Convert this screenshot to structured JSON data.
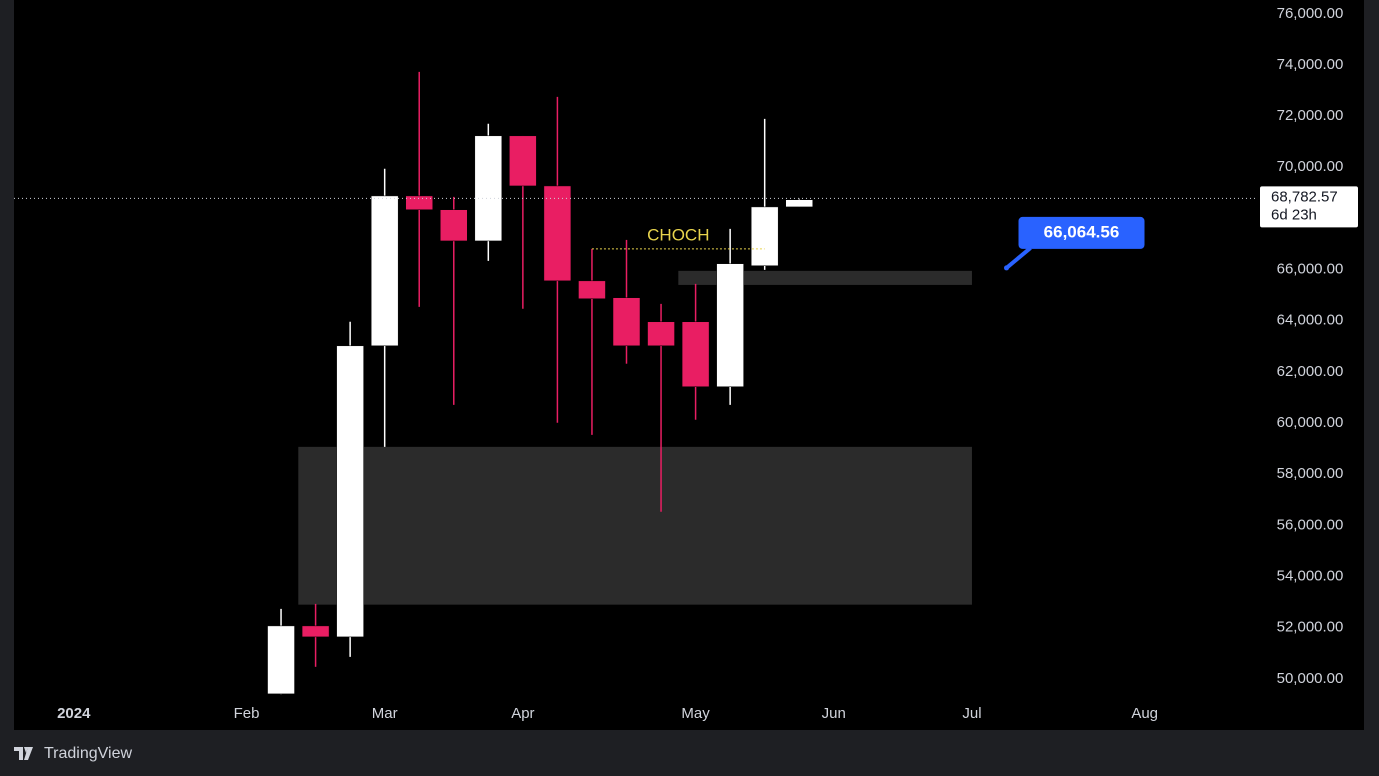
{
  "chart_data": {
    "type": "candlestick",
    "categories": [
      null,
      null,
      null,
      null,
      null,
      null,
      null,
      null,
      null,
      null,
      null,
      null,
      null,
      null,
      null,
      null
    ],
    "open": [
      49412,
      52070,
      51640,
      63020,
      68880,
      68340,
      67120,
      71230,
      69270,
      65560,
      64900,
      63960,
      63960,
      61420,
      66150,
      68450
    ],
    "high": [
      52735,
      52930,
      63960,
      69940,
      73730,
      68840,
      71700,
      71230,
      72750,
      66810,
      67160,
      64660,
      65440,
      67590,
      71890,
      68770
    ],
    "low": [
      49400,
      50470,
      50860,
      59070,
      64540,
      60710,
      66340,
      64470,
      60010,
      59540,
      62320,
      56530,
      60130,
      60710,
      65990,
      68450
    ],
    "close": [
      52070,
      51640,
      63020,
      68880,
      68340,
      67120,
      71230,
      69270,
      65560,
      64860,
      63020,
      63020,
      61420,
      66230,
      68450,
      68730
    ],
    "up_color": "#ffffff",
    "down_color": "#e91e63",
    "xlim": [
      -7.73,
      28.28
    ],
    "xticks": [
      {
        "value": -6,
        "label": "2024"
      },
      {
        "value": -1,
        "label": "Feb"
      },
      {
        "value": 3,
        "label": "Mar"
      },
      {
        "value": 7,
        "label": "Apr"
      },
      {
        "value": 12,
        "label": "May"
      },
      {
        "value": 16,
        "label": "Jun"
      },
      {
        "value": 20,
        "label": "Jul"
      },
      {
        "value": 25,
        "label": "Aug"
      }
    ],
    "ylim": [
      48000,
      76500
    ],
    "yticks": [
      {
        "value": 50000,
        "label": "50,000.00"
      },
      {
        "value": 52000,
        "label": "52,000.00"
      },
      {
        "value": 54000,
        "label": "54,000.00"
      },
      {
        "value": 56000,
        "label": "56,000.00"
      },
      {
        "value": 58000,
        "label": "58,000.00"
      },
      {
        "value": 60000,
        "label": "60,000.00"
      },
      {
        "value": 62000,
        "label": "62,000.00"
      },
      {
        "value": 64000,
        "label": "64,000.00"
      },
      {
        "value": 66000,
        "label": "66,000.00"
      },
      {
        "value": 68000,
        "label": "68,000.00"
      },
      {
        "value": 70000,
        "label": "70,000.00"
      },
      {
        "value": 72000,
        "label": "72,000.00"
      },
      {
        "value": 74000,
        "label": "74,000.00"
      },
      {
        "value": 76000,
        "label": "76,000.00"
      }
    ],
    "zones": [
      {
        "from": 1,
        "to": 20,
        "low": 52900,
        "high": 59070
      },
      {
        "from": 12,
        "to": 20,
        "low": 65400,
        "high": 65950
      }
    ],
    "choch": {
      "text": "CHOCH",
      "level": 66810,
      "from": 9,
      "to": 14
    },
    "price_label": {
      "text": "66,064.56",
      "value": 66064.56,
      "at": 21
    },
    "last_price": {
      "value": 68782.57,
      "label": "68,782.57",
      "countdown": "6d 23h"
    }
  },
  "footer": {
    "brand": "TradingView"
  }
}
